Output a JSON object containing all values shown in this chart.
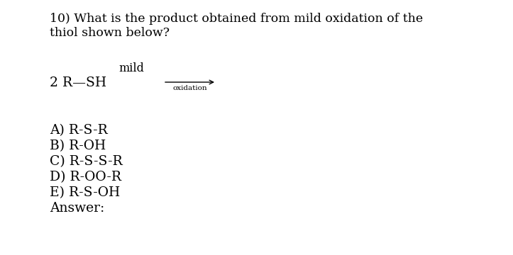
{
  "background_color": "#ffffff",
  "title_line1": "10) What is the product obtained from mild oxidation of the",
  "title_line2": "thiol shown below?",
  "mild_label": "mild",
  "reactant": "2 R—SH",
  "arrow_label": "oxidation",
  "choices": [
    "A) R-S-R",
    "B) R-OH",
    "C) R-S-S-R",
    "D) R-OO-R",
    "E) R-S-OH"
  ],
  "answer_label": "Answer:",
  "font_size_title": 12.5,
  "font_size_body": 13.5,
  "font_size_arrow_label": 7.5,
  "font_size_mild": 11.5,
  "font_color": "#000000",
  "font_family": "DejaVu Serif",
  "fig_width": 7.23,
  "fig_height": 3.6,
  "dpi": 100
}
